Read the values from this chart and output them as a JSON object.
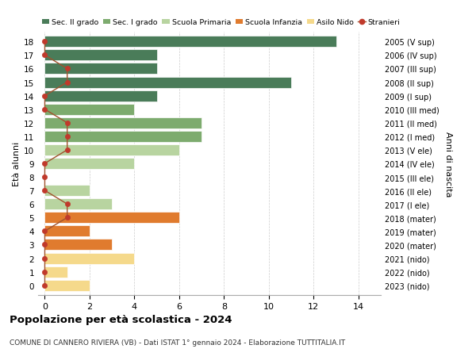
{
  "ages": [
    18,
    17,
    16,
    15,
    14,
    13,
    12,
    11,
    10,
    9,
    8,
    7,
    6,
    5,
    4,
    3,
    2,
    1,
    0
  ],
  "bar_values": [
    13,
    5,
    5,
    11,
    5,
    4,
    7,
    7,
    6,
    4,
    0,
    2,
    3,
    6,
    2,
    3,
    4,
    1,
    2
  ],
  "bar_colors": [
    "#4a7c59",
    "#4a7c59",
    "#4a7c59",
    "#4a7c59",
    "#4a7c59",
    "#7dab6e",
    "#7dab6e",
    "#7dab6e",
    "#b8d4a0",
    "#b8d4a0",
    "#b8d4a0",
    "#b8d4a0",
    "#b8d4a0",
    "#e07b2e",
    "#e07b2e",
    "#e07b2e",
    "#f5d98b",
    "#f5d98b",
    "#f5d98b"
  ],
  "stranieri_x": [
    0,
    0,
    1,
    1,
    0,
    0,
    1,
    1,
    1,
    0,
    0,
    0,
    1,
    1,
    0,
    0,
    0,
    0,
    0
  ],
  "right_labels": [
    "2005 (V sup)",
    "2006 (IV sup)",
    "2007 (III sup)",
    "2008 (II sup)",
    "2009 (I sup)",
    "2010 (III med)",
    "2011 (II med)",
    "2012 (I med)",
    "2013 (V ele)",
    "2014 (IV ele)",
    "2015 (III ele)",
    "2016 (II ele)",
    "2017 (I ele)",
    "2018 (mater)",
    "2019 (mater)",
    "2020 (mater)",
    "2021 (nido)",
    "2022 (nido)",
    "2023 (nido)"
  ],
  "ylabel": "Età alunni",
  "right_ylabel": "Anni di nascita",
  "xlim": [
    -0.3,
    15
  ],
  "ylim": [
    -0.7,
    18.7
  ],
  "xticks": [
    0,
    2,
    4,
    6,
    8,
    10,
    12,
    14
  ],
  "title": "Popolazione per età scolastica - 2024",
  "subtitle": "COMUNE DI CANNERO RIVIERA (VB) - Dati ISTAT 1° gennaio 2024 - Elaborazione TUTTITALIA.IT",
  "legend_labels": [
    "Sec. II grado",
    "Sec. I grado",
    "Scuola Primaria",
    "Scuola Infanzia",
    "Asilo Nido",
    "Stranieri"
  ],
  "legend_colors": [
    "#4a7c59",
    "#7dab6e",
    "#b8d4a0",
    "#e07b2e",
    "#f5d98b",
    "#c0392b"
  ],
  "bar_height": 0.82,
  "background_color": "#ffffff",
  "grid_color": "#cccccc",
  "stranieri_color": "#c0392b",
  "stranieri_line_color": "#a0522d"
}
